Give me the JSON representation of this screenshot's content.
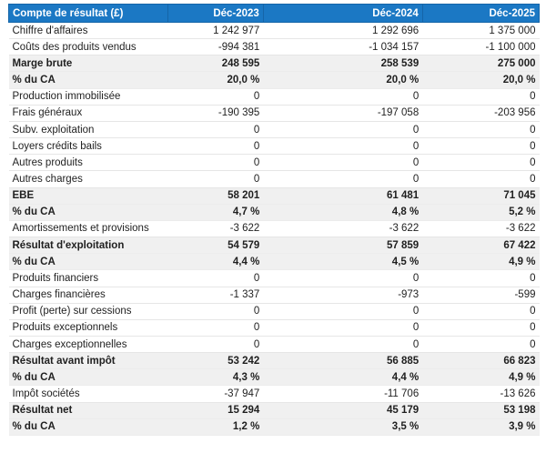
{
  "chart_data": {
    "type": "table",
    "title": "Compte de résultat (£)",
    "columns": [
      "Compte de résultat (£)",
      "Déc-2023",
      "Déc-2024",
      "Déc-2025"
    ],
    "rows": [
      {
        "label": "Chiffre d'affaires",
        "values": [
          "1 242 977",
          "1 292 696",
          "1 375 000"
        ],
        "style": "normal"
      },
      {
        "label": "Coûts des produits vendus",
        "values": [
          "-994 381",
          "-1 034 157",
          "-1 100 000"
        ],
        "style": "normal"
      },
      {
        "label": "Marge brute",
        "values": [
          "248 595",
          "258 539",
          "275 000"
        ],
        "style": "summary"
      },
      {
        "label": "% du CA",
        "values": [
          "20,0 %",
          "20,0 %",
          "20,0 %"
        ],
        "style": "summary"
      },
      {
        "label": "Production immobilisée",
        "values": [
          "0",
          "0",
          "0"
        ],
        "style": "normal"
      },
      {
        "label": "Frais généraux",
        "values": [
          "-190 395",
          "-197 058",
          "-203 956"
        ],
        "style": "normal"
      },
      {
        "label": "Subv. exploitation",
        "values": [
          "0",
          "0",
          "0"
        ],
        "style": "normal"
      },
      {
        "label": "Loyers crédits bails",
        "values": [
          "0",
          "0",
          "0"
        ],
        "style": "normal"
      },
      {
        "label": "Autres produits",
        "values": [
          "0",
          "0",
          "0"
        ],
        "style": "normal"
      },
      {
        "label": "Autres charges",
        "values": [
          "0",
          "0",
          "0"
        ],
        "style": "normal"
      },
      {
        "label": "EBE",
        "values": [
          "58 201",
          "61 481",
          "71 045"
        ],
        "style": "summary"
      },
      {
        "label": "% du CA",
        "values": [
          "4,7 %",
          "4,8 %",
          "5,2 %"
        ],
        "style": "summary"
      },
      {
        "label": "Amortissements et provisions",
        "values": [
          "-3 622",
          "-3 622",
          "-3 622"
        ],
        "style": "normal"
      },
      {
        "label": "Résultat d'exploitation",
        "values": [
          "54 579",
          "57 859",
          "67 422"
        ],
        "style": "summary"
      },
      {
        "label": "% du CA",
        "values": [
          "4,4 %",
          "4,5 %",
          "4,9 %"
        ],
        "style": "summary"
      },
      {
        "label": "Produits financiers",
        "values": [
          "0",
          "0",
          "0"
        ],
        "style": "normal"
      },
      {
        "label": "Charges financières",
        "values": [
          "-1 337",
          "-973",
          "-599"
        ],
        "style": "normal"
      },
      {
        "label": "Profit (perte) sur cessions",
        "values": [
          "0",
          "0",
          "0"
        ],
        "style": "normal"
      },
      {
        "label": "Produits exceptionnels",
        "values": [
          "0",
          "0",
          "0"
        ],
        "style": "normal"
      },
      {
        "label": "Charges exceptionnelles",
        "values": [
          "0",
          "0",
          "0"
        ],
        "style": "normal"
      },
      {
        "label": "Résultat avant impôt",
        "values": [
          "53 242",
          "56 885",
          "66 823"
        ],
        "style": "summary"
      },
      {
        "label": "% du CA",
        "values": [
          "4,3 %",
          "4,4 %",
          "4,9 %"
        ],
        "style": "summary"
      },
      {
        "label": "Impôt sociétés",
        "values": [
          "-37 947",
          "-11 706",
          "-13 626"
        ],
        "style": "normal"
      },
      {
        "label": "Résultat net",
        "values": [
          "15 294",
          "45 179",
          "53 198"
        ],
        "style": "summary"
      },
      {
        "label": "% du CA",
        "values": [
          "1,2 %",
          "3,5 %",
          "3,9 %"
        ],
        "style": "summary"
      }
    ],
    "layout_hints": {
      "currency_symbol": "£",
      "decimal_separator": ",",
      "thousands_separator": " ",
      "summary_rows_bold": true
    },
    "colors": {
      "header_bg": "#1B78C4",
      "header_border": "#1565A8",
      "header_text": "#FFFFFF",
      "summary_row_bg": "#F0F0F0",
      "summary_divider": "#ECECEC",
      "row_divider": "#E6E6E6",
      "text": "#1F1F1F",
      "page_bg": "#FFFFFF"
    }
  }
}
